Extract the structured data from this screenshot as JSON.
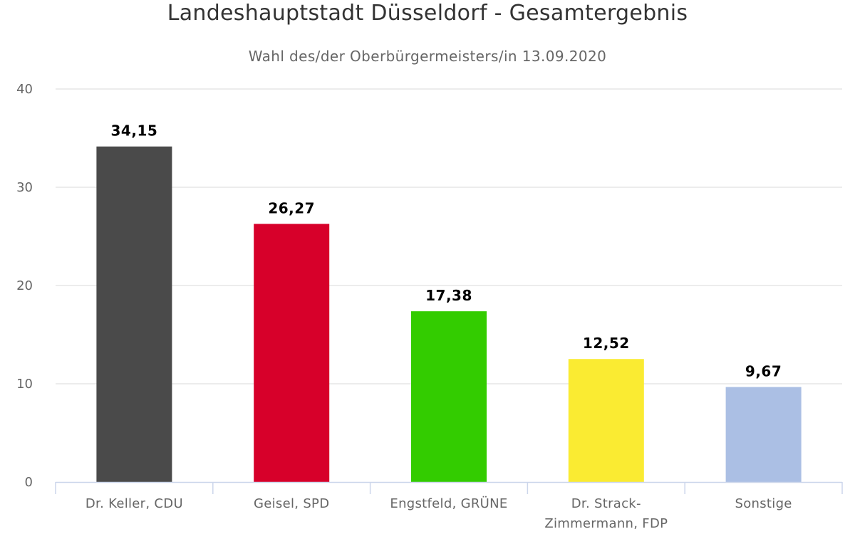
{
  "chart_data": {
    "type": "bar",
    "title": "Landeshauptstadt Düsseldorf - Gesamtergebnis",
    "subtitle": "Wahl des/der Oberbürgermeisters/in 13.09.2020",
    "xlabel": "",
    "ylabel": "",
    "ylim": [
      0,
      40
    ],
    "yticks": [
      0,
      10,
      20,
      30,
      40
    ],
    "grid": true,
    "legend": "none",
    "categories": [
      [
        "Dr. Keller, CDU"
      ],
      [
        "Geisel, SPD"
      ],
      [
        "Engstfeld, GRÜNE"
      ],
      [
        "Dr. Strack-",
        "Zimmermann, FDP"
      ],
      [
        "Sonstige"
      ]
    ],
    "values": [
      34.15,
      26.27,
      17.38,
      12.52,
      9.67
    ],
    "value_labels": [
      "34,15",
      "26,27",
      "17,38",
      "12,52",
      "9,67"
    ],
    "colors": [
      "#4a4a4a",
      "#d7002a",
      "#33cc00",
      "#faeb32",
      "#abbfe4"
    ]
  }
}
